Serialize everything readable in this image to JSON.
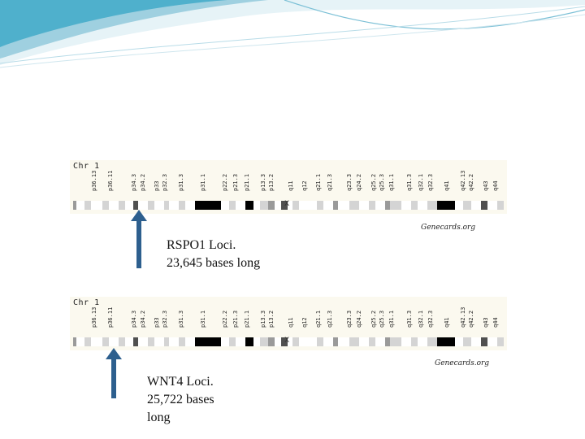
{
  "banner": {
    "colors": [
      "#e6f3f7",
      "#9fd0e0",
      "#4fb0cc"
    ]
  },
  "ideogram": {
    "chr_label": "Chr 1",
    "bands": [
      "p36.13",
      "p36.11",
      "p34.3",
      "p34.2",
      "p33",
      "p32.3",
      "p31.3",
      "p31.1",
      "p22.2",
      "p21.3",
      "p21.1",
      "p13.3",
      "p13.2",
      "q11",
      "q12",
      "q21.1",
      "q21.3",
      "q23.3",
      "q24.2",
      "q25.2",
      "q25.3",
      "q31.1",
      "q31.3",
      "q32.1",
      "q32.3",
      "q41",
      "q42.13",
      "q42.2",
      "q43",
      "q44"
    ],
    "centromere_symbol": "X",
    "colors": {
      "white": "#ffffff",
      "light": "#d4d4d4",
      "mid": "#9a9a9a",
      "dark": "#505050",
      "black": "#000000"
    }
  },
  "panels": [
    {
      "credit": "Genecards.org",
      "loci_lines": [
        "RSPO1 Loci.",
        "23,645 bases long"
      ]
    },
    {
      "credit": "Genecards.org",
      "loci_lines": [
        "WNT4 Loci.",
        "25,722 bases",
        "long"
      ]
    }
  ],
  "arrow_color": "#2d5f8e"
}
